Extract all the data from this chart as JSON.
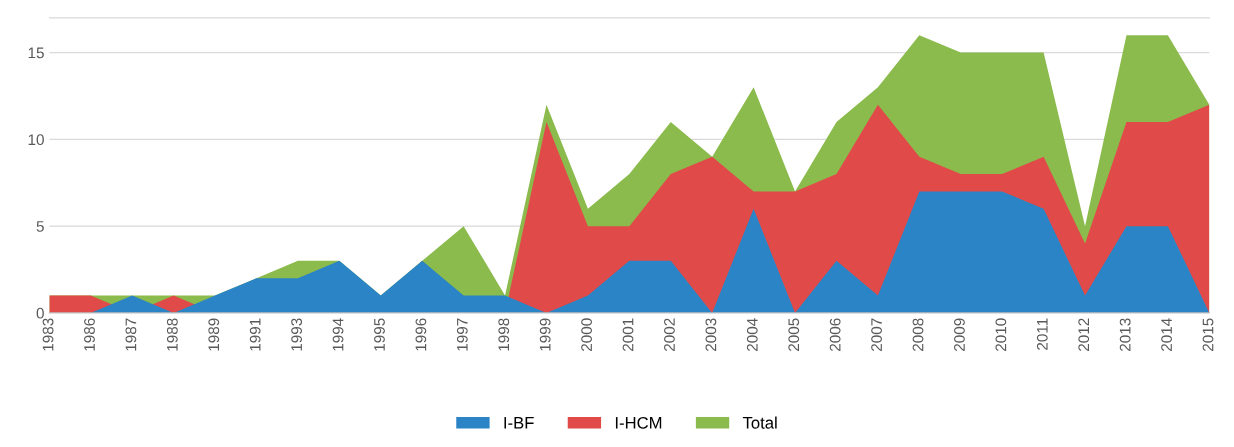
{
  "chart_data": {
    "type": "area",
    "categories": [
      "1983",
      "1986",
      "1987",
      "1988",
      "1989",
      "1991",
      "1993",
      "1994",
      "1995",
      "1996",
      "1997",
      "1998",
      "1999",
      "2000",
      "2001",
      "2002",
      "2003",
      "2004",
      "2005",
      "2006",
      "2007",
      "2008",
      "2009",
      "2010",
      "2011",
      "2012",
      "2013",
      "2014",
      "2015"
    ],
    "series": [
      {
        "name": "Total",
        "color": "#8bbb4c",
        "values": [
          1,
          1,
          1,
          1,
          1,
          2,
          3,
          3,
          1,
          3,
          5,
          1,
          12,
          6,
          8,
          11,
          9,
          13,
          7,
          11,
          13,
          16,
          15,
          15,
          15,
          5,
          16,
          16,
          12
        ]
      },
      {
        "name": "I-HCM",
        "color": "#e04b4a",
        "values": [
          1,
          1,
          0,
          1,
          0,
          0,
          0,
          0,
          0,
          0,
          1,
          0,
          11,
          5,
          5,
          8,
          9,
          7,
          7,
          8,
          12,
          9,
          8,
          8,
          9,
          4,
          11,
          11,
          12
        ]
      },
      {
        "name": "I-BF",
        "color": "#2a84c6",
        "values": [
          0,
          0,
          1,
          0,
          1,
          2,
          2,
          3,
          1,
          3,
          1,
          1,
          0,
          1,
          3,
          3,
          0,
          6,
          0,
          3,
          1,
          7,
          7,
          7,
          6,
          1,
          5,
          5,
          0
        ]
      }
    ],
    "ylim": [
      0,
      17
    ],
    "yticks": [
      0,
      5,
      10,
      15
    ],
    "grid": "y",
    "legend": "bottom"
  }
}
